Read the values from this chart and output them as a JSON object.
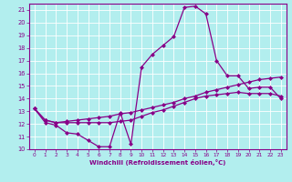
{
  "xlabel": "Windchill (Refroidissement éolien,°C)",
  "background_color": "#b2eeee",
  "line_color": "#880088",
  "xlim": [
    -0.5,
    23.5
  ],
  "ylim": [
    10,
    21.5
  ],
  "yticks": [
    10,
    11,
    12,
    13,
    14,
    15,
    16,
    17,
    18,
    19,
    20,
    21
  ],
  "xticks": [
    0,
    1,
    2,
    3,
    4,
    5,
    6,
    7,
    8,
    9,
    10,
    11,
    12,
    13,
    14,
    15,
    16,
    17,
    18,
    19,
    20,
    21,
    22,
    23
  ],
  "line1_x": [
    0,
    1,
    2,
    3,
    4,
    5,
    6,
    7,
    8,
    9,
    10,
    11,
    12,
    13,
    14,
    15,
    16,
    17,
    18,
    19,
    20,
    21,
    22,
    23
  ],
  "line1_y": [
    13.2,
    12.1,
    11.9,
    11.3,
    11.2,
    10.7,
    10.2,
    10.2,
    12.9,
    10.4,
    16.5,
    17.5,
    18.2,
    18.9,
    21.2,
    21.3,
    20.7,
    17.0,
    15.8,
    15.8,
    14.8,
    14.9,
    14.9,
    14.0
  ],
  "line2_x": [
    0,
    1,
    2,
    3,
    4,
    5,
    6,
    7,
    8,
    9,
    10,
    11,
    12,
    13,
    14,
    15,
    16,
    17,
    18,
    19,
    20,
    21,
    22,
    23
  ],
  "line2_y": [
    13.2,
    12.3,
    12.1,
    12.2,
    12.3,
    12.4,
    12.5,
    12.6,
    12.8,
    12.9,
    13.1,
    13.3,
    13.5,
    13.7,
    14.0,
    14.2,
    14.5,
    14.7,
    14.9,
    15.1,
    15.3,
    15.5,
    15.6,
    15.7
  ],
  "line3_x": [
    0,
    1,
    2,
    3,
    4,
    5,
    6,
    7,
    8,
    9,
    10,
    11,
    12,
    13,
    14,
    15,
    16,
    17,
    18,
    19,
    20,
    21,
    22,
    23
  ],
  "line3_y": [
    13.2,
    12.3,
    12.1,
    12.1,
    12.1,
    12.1,
    12.1,
    12.1,
    12.2,
    12.3,
    12.6,
    12.9,
    13.1,
    13.4,
    13.7,
    14.0,
    14.2,
    14.3,
    14.4,
    14.5,
    14.4,
    14.4,
    14.4,
    14.2
  ],
  "marker": "D",
  "markersize": 2.0,
  "linewidth": 0.9
}
